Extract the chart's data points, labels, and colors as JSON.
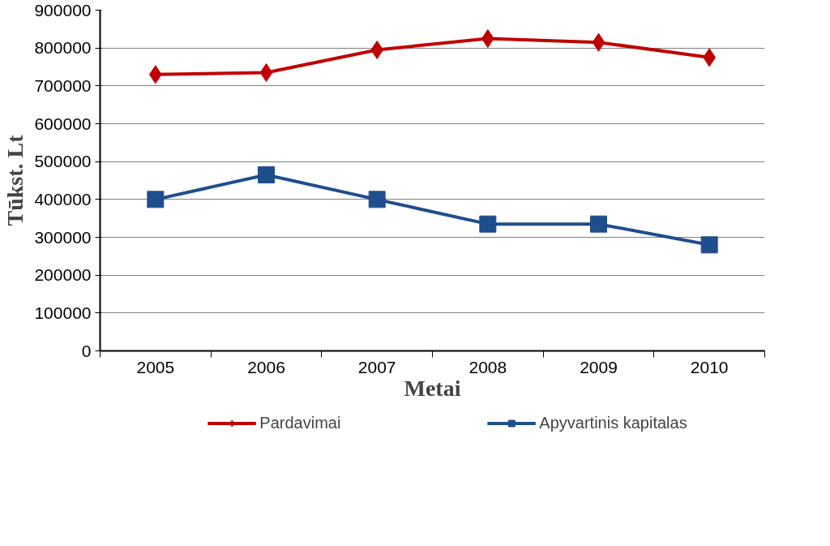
{
  "chart_data": {
    "type": "line",
    "xlabel": "Metai",
    "ylabel": "Tūkst. Lt",
    "categories": [
      "2005",
      "2006",
      "2007",
      "2008",
      "2009",
      "2010"
    ],
    "series": [
      {
        "name": "Pardavimai",
        "color": "#c00000",
        "marker": "diamond",
        "values": [
          730000,
          735000,
          795000,
          825000,
          815000,
          775000
        ]
      },
      {
        "name": "Apyvartinis kapitalas",
        "color": "#1f4e8c",
        "marker": "square",
        "values": [
          400000,
          465000,
          400000,
          335000,
          335000,
          280000
        ]
      }
    ],
    "ylim": [
      0,
      900000
    ],
    "yticks": [
      0,
      100000,
      200000,
      300000,
      400000,
      500000,
      600000,
      700000,
      800000,
      900000
    ],
    "grid": "y",
    "legend": "bottom",
    "line_style": "solid"
  }
}
